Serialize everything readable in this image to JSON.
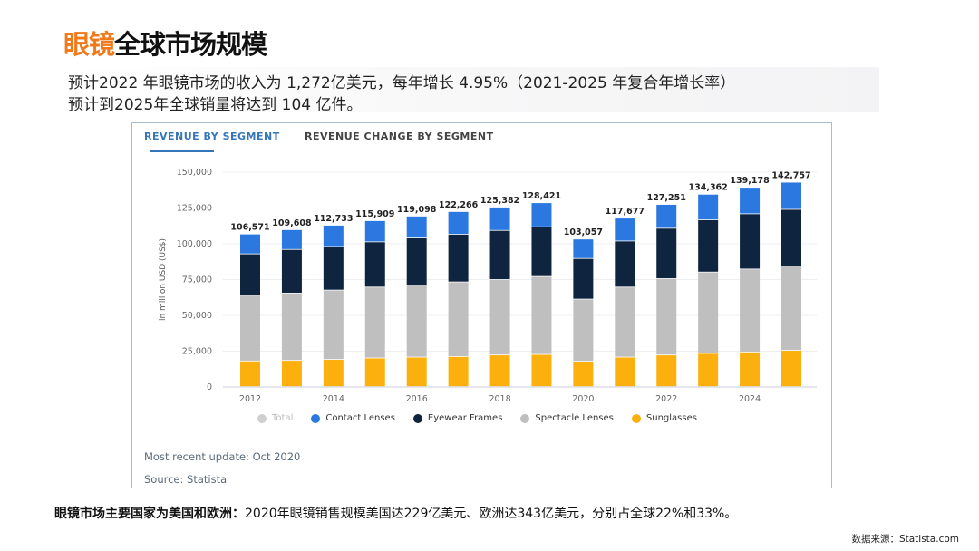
{
  "header": {
    "title_highlight": "眼镜",
    "title_rest": "全球市场规模"
  },
  "summary": {
    "line1": "预计2022 年眼镜市场的收入为 1,272亿美元，每年增长 4.95%（2021-2025 年复合年增长率）",
    "line2": "预计到2025年全球销量将达到 104 亿件。"
  },
  "tabs": [
    {
      "label": "REVENUE BY SEGMENT",
      "active": true
    },
    {
      "label": "REVENUE CHANGE BY SEGMENT",
      "active": false
    }
  ],
  "chart_data": {
    "type": "bar",
    "stacked": true,
    "title": "Revenue by segment",
    "ylabel": "in million USD (US$)",
    "ylim": [
      0,
      150000
    ],
    "yticks": [
      "0",
      "25,000",
      "50,000",
      "75,000",
      "100,000",
      "125,000",
      "150,000"
    ],
    "ytick_values": [
      0,
      25000,
      50000,
      75000,
      100000,
      125000,
      150000
    ],
    "categories": [
      "2012",
      "2013",
      "2014",
      "2015",
      "2016",
      "2017",
      "2018",
      "2019",
      "2020",
      "2021",
      "2022",
      "2023",
      "2024",
      "2025"
    ],
    "xtick_labels": [
      "2012",
      "2014",
      "2016",
      "2018",
      "2020",
      "2022",
      "2024"
    ],
    "totals": [
      106571,
      109608,
      112733,
      115909,
      119098,
      122266,
      125382,
      128421,
      103057,
      117677,
      127251,
      134362,
      139178,
      142757
    ],
    "total_labels": [
      "106,571",
      "109,608",
      "112,733",
      "115,909",
      "119,098",
      "122,266",
      "125,382",
      "128,421",
      "103,057",
      "117,677",
      "127,251",
      "134,362",
      "139,178",
      "142,757"
    ],
    "series": [
      {
        "name": "Sunglasses",
        "color": "#fbb00d",
        "values": [
          17900,
          18300,
          19000,
          20000,
          20600,
          21000,
          22100,
          22500,
          17700,
          20600,
          22100,
          23200,
          24200,
          25300
        ]
      },
      {
        "name": "Spectacle Lenses",
        "color": "#bfbfbf",
        "values": [
          45900,
          47000,
          48400,
          49500,
          50400,
          52100,
          52700,
          54400,
          43400,
          48900,
          53300,
          56800,
          57900,
          58900
        ]
      },
      {
        "name": "Eyewear Frames",
        "color": "#0f243e",
        "values": [
          28900,
          30500,
          30500,
          31600,
          32800,
          33300,
          34300,
          34700,
          28400,
          32200,
          35200,
          36500,
          38600,
          39600
        ]
      },
      {
        "name": "Contact Lenses",
        "color": "#2b78e0",
        "values": [
          13871,
          13808,
          14833,
          14809,
          15298,
          15866,
          16282,
          16821,
          13557,
          15977,
          16651,
          17862,
          18478,
          18957
        ]
      }
    ],
    "legend": [
      {
        "name": "Total",
        "color": "#cfcfcf"
      },
      {
        "name": "Contact Lenses",
        "color": "#2b78e0"
      },
      {
        "name": "Eyewear Frames",
        "color": "#0f243e"
      },
      {
        "name": "Spectacle Lenses",
        "color": "#bfbfbf"
      },
      {
        "name": "Sunglasses",
        "color": "#fbb00d"
      }
    ],
    "legend_position": "bottom",
    "grid": true
  },
  "meta": {
    "update": "Most recent update: Oct 2020",
    "source": "Source: Statista"
  },
  "footer": {
    "bold": "眼镜市场主要国家为美国和欧洲：",
    "text": "2020年眼镜销售规模美国达229亿美元、欧洲达343亿美元，分别占全球22%和33%。",
    "source_note": "数据来源：Statista.com"
  }
}
